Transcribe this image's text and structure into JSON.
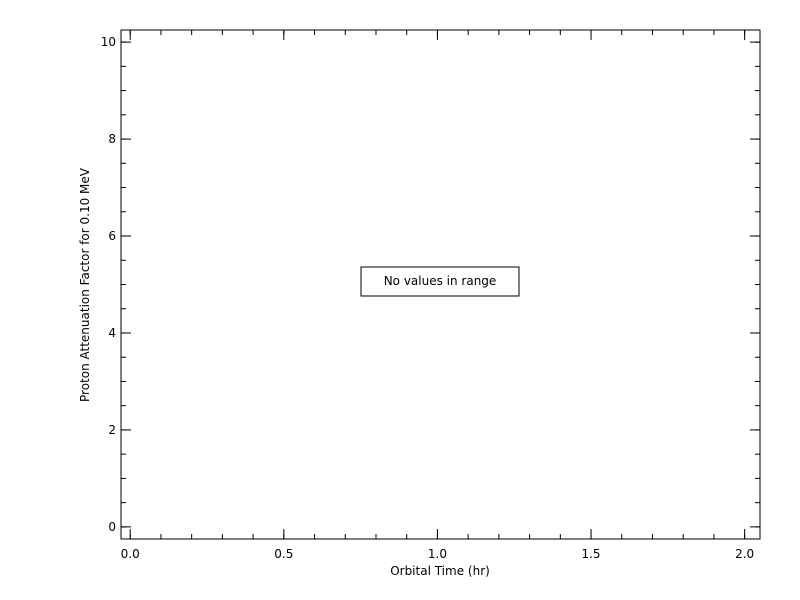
{
  "chart_data": {
    "type": "line",
    "title": "",
    "xlabel": "Orbital Time (hr)",
    "ylabel": "Proton Attenuation Factor for 0.10 MeV",
    "xlim": [
      -0.03,
      2.05
    ],
    "ylim": [
      -0.25,
      10.25
    ],
    "x_ticks": [
      0.0,
      0.5,
      1.0,
      1.5,
      2.0
    ],
    "x_tick_labels": [
      "0.0",
      "0.5",
      "1.0",
      "1.5",
      "2.0"
    ],
    "x_minor_step": 0.1,
    "y_ticks": [
      0,
      2,
      4,
      6,
      8,
      10
    ],
    "y_tick_labels": [
      "0",
      "2",
      "4",
      "6",
      "8",
      "10"
    ],
    "y_minor_step": 0.5,
    "grid": false,
    "series": [],
    "annotation": "No values in range"
  }
}
